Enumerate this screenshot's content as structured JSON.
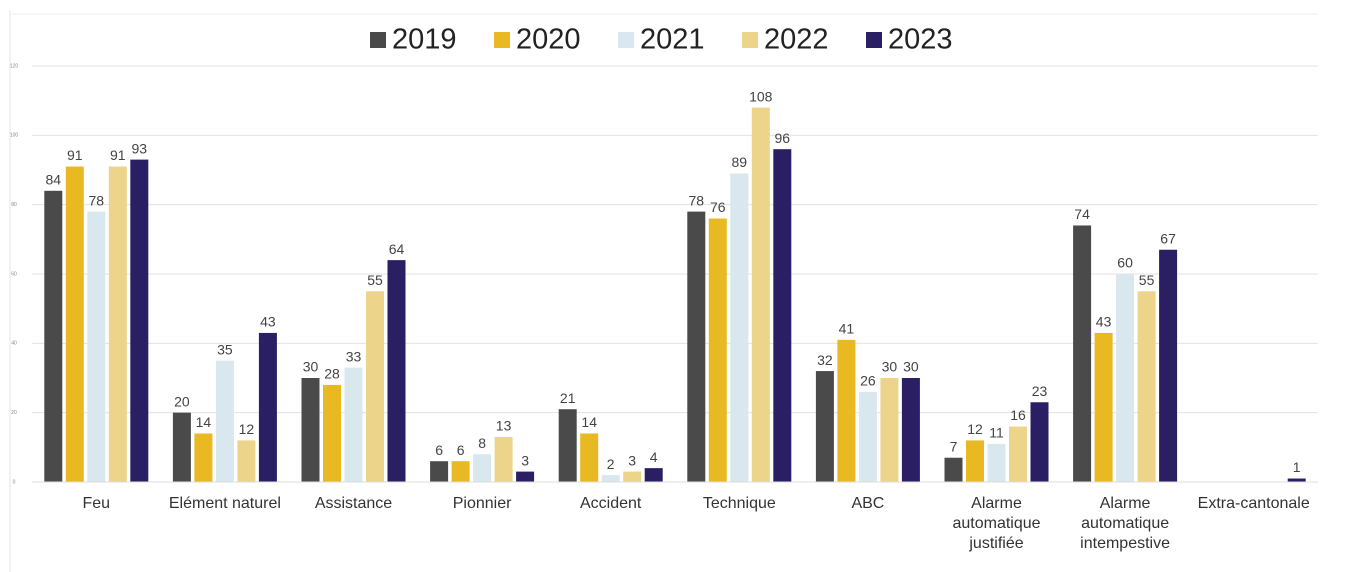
{
  "chart_data": {
    "type": "bar",
    "categories": [
      "Feu",
      "Elément naturel",
      "Assistance",
      "Pionnier",
      "Accident",
      "Technique",
      "ABC",
      "Alarme automatique justifiée",
      "Alarme automatique intempestive",
      "Extra-cantonale"
    ],
    "series": [
      {
        "name": "2019",
        "color": "#4a4a4a",
        "values": [
          84,
          20,
          30,
          6,
          21,
          78,
          32,
          7,
          74,
          null
        ]
      },
      {
        "name": "2020",
        "color": "#e8b923",
        "values": [
          91,
          14,
          28,
          6,
          14,
          76,
          41,
          12,
          43,
          null
        ]
      },
      {
        "name": "2021",
        "color": "#d9e8ef",
        "values": [
          78,
          35,
          33,
          8,
          2,
          89,
          26,
          11,
          60,
          null
        ]
      },
      {
        "name": "2022",
        "color": "#ecd48a",
        "values": [
          91,
          12,
          55,
          13,
          3,
          108,
          30,
          16,
          55,
          null
        ]
      },
      {
        "name": "2023",
        "color": "#2a1f63",
        "values": [
          93,
          43,
          64,
          3,
          4,
          96,
          30,
          23,
          67,
          1
        ]
      }
    ],
    "ylim": [
      0,
      120
    ],
    "yticks": [
      0,
      20,
      40,
      60,
      80,
      100,
      120
    ],
    "grid": true,
    "legend": "top"
  }
}
